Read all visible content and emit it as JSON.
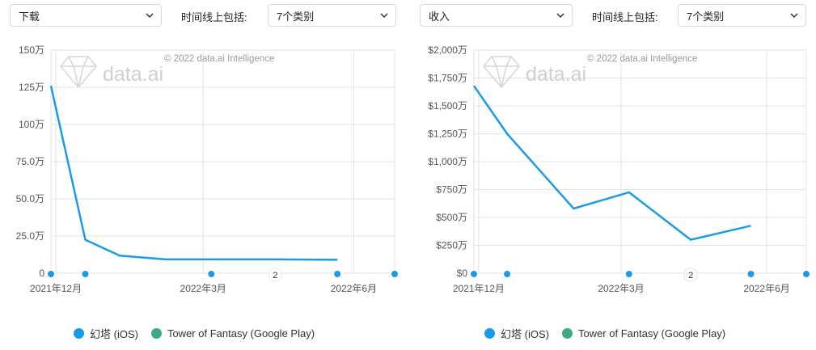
{
  "controls": {
    "left_metric": "下载",
    "right_metric": "收入",
    "timeline_label": "时间线上包括:",
    "left_categories": "7个类别",
    "right_categories": "7个类别"
  },
  "watermark": {
    "copyright": "© 2022 data.ai Intelligence",
    "logo_text": "data.ai"
  },
  "legend": {
    "items": [
      {
        "label": "幻塔 (iOS)",
        "color": "#1a9be8"
      },
      {
        "label": "Tower of Fantasy (Google Play)",
        "color": "#3daa80"
      }
    ]
  },
  "chart_data": [
    {
      "type": "line",
      "ylim": [
        0,
        1500000
      ],
      "yticks": [
        0,
        250000,
        500000,
        750000,
        1000000,
        1250000,
        1500000
      ],
      "ytick_labels": [
        "0",
        "25.0万",
        "50.0万",
        "75.0万",
        "100万",
        "125万",
        "150万"
      ],
      "xlim": [
        "2021-11-28",
        "2022-06-26"
      ],
      "xtick_labels": [
        "2021年12月",
        "2022年3月",
        "2022年6月"
      ],
      "xtick_dates": [
        "2021-12-01",
        "2022-03-01",
        "2022-06-01"
      ],
      "markers": [
        "2021-11-28",
        "2021-12-19",
        "2022-03-06",
        "2022-05-22",
        "2022-06-26"
      ],
      "annotation": {
        "date": "2022-04-14",
        "label": "2"
      },
      "grid": true,
      "series": [
        {
          "name": "幻塔 (iOS)",
          "color": "#1a9be8",
          "x": [
            "2021-11-28",
            "2021-12-19",
            "2022-01-09",
            "2022-02-06",
            "2022-03-06",
            "2022-04-14",
            "2022-05-22"
          ],
          "y": [
            1260000,
            225000,
            118000,
            93000,
            93000,
            93000,
            90000
          ]
        }
      ]
    },
    {
      "type": "line",
      "ylim": [
        0,
        20000000
      ],
      "yticks": [
        0,
        2500000,
        5000000,
        7500000,
        10000000,
        12500000,
        15000000,
        17500000,
        20000000
      ],
      "ytick_labels": [
        "$0",
        "$250万",
        "$500万",
        "$750万",
        "$1,000万",
        "$1,250万",
        "$1,500万",
        "$1,750万",
        "$2,000万"
      ],
      "xlim": [
        "2021-11-28",
        "2022-06-26"
      ],
      "xtick_labels": [
        "2021年12月",
        "2022年3月",
        "2022年6月"
      ],
      "xtick_dates": [
        "2021-12-01",
        "2022-03-01",
        "2022-06-01"
      ],
      "markers": [
        "2021-11-28",
        "2021-12-19",
        "2022-03-06",
        "2022-05-22",
        "2022-06-26"
      ],
      "annotation": {
        "date": "2022-04-14",
        "label": "2"
      },
      "grid": true,
      "series": [
        {
          "name": "幻塔 (iOS)",
          "color": "#1a9be8",
          "x": [
            "2021-11-28",
            "2021-12-19",
            "2022-01-30",
            "2022-03-06",
            "2022-04-14",
            "2022-05-22"
          ],
          "y": [
            16800000,
            12500000,
            5800000,
            7250000,
            3000000,
            4250000
          ]
        }
      ]
    }
  ]
}
